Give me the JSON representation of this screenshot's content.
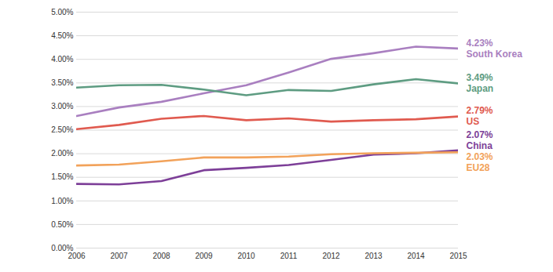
{
  "chart_data": {
    "type": "line",
    "x": [
      2006,
      2007,
      2008,
      2009,
      2010,
      2011,
      2012,
      2013,
      2014,
      2015
    ],
    "xlim": [
      2006,
      2015
    ],
    "xticks": [
      2006,
      2007,
      2008,
      2009,
      2010,
      2011,
      2012,
      2013,
      2014,
      2015
    ],
    "ylim": [
      0,
      5
    ],
    "yticks": [
      {
        "value": 0,
        "label": "0.00%"
      },
      {
        "value": 0.5,
        "label": "0.50%"
      },
      {
        "value": 1,
        "label": "1.00%"
      },
      {
        "value": 1.5,
        "label": "1.50%"
      },
      {
        "value": 2,
        "label": "2.00%"
      },
      {
        "value": 2.5,
        "label": "2.50%"
      },
      {
        "value": 3,
        "label": "3.00%"
      },
      {
        "value": 3.5,
        "label": "3.50%"
      },
      {
        "value": 4,
        "label": "4.00%"
      },
      {
        "value": 4.5,
        "label": "4.50%"
      },
      {
        "value": 5,
        "label": "5.00%"
      }
    ],
    "grid": true,
    "series": [
      {
        "name": "South Korea",
        "color": "#a97fc0",
        "values": [
          2.8,
          2.98,
          3.1,
          3.28,
          3.45,
          3.72,
          4.01,
          4.13,
          4.27,
          4.23
        ],
        "value_labels": [
          null,
          null,
          null,
          null,
          null,
          null,
          null,
          null,
          null,
          "4.23%"
        ]
      },
      {
        "name": "Japan",
        "color": "#5e9c82",
        "values": [
          3.4,
          3.45,
          3.46,
          3.36,
          3.24,
          3.35,
          3.33,
          3.47,
          3.58,
          3.49
        ],
        "value_labels": [
          null,
          null,
          null,
          null,
          null,
          null,
          null,
          null,
          null,
          "3.49%"
        ]
      },
      {
        "name": "US",
        "color": "#e05a4f",
        "values": [
          2.52,
          2.61,
          2.74,
          2.8,
          2.71,
          2.75,
          2.68,
          2.71,
          2.73,
          2.79
        ],
        "value_labels": [
          null,
          null,
          null,
          null,
          null,
          null,
          null,
          null,
          null,
          "2.79%"
        ]
      },
      {
        "name": "China",
        "color": "#7d3f98",
        "values": [
          1.36,
          1.35,
          1.42,
          1.65,
          1.7,
          1.76,
          1.87,
          1.98,
          2.01,
          2.07
        ],
        "value_labels": [
          null,
          null,
          null,
          null,
          null,
          null,
          null,
          null,
          null,
          "2.07%"
        ]
      },
      {
        "name": "EU28",
        "color": "#f2a25a",
        "values": [
          1.75,
          1.77,
          1.84,
          1.92,
          1.92,
          1.94,
          1.99,
          2.01,
          2.02,
          2.03
        ],
        "value_labels": [
          null,
          null,
          null,
          null,
          null,
          null,
          null,
          null,
          null,
          "2.03%"
        ]
      }
    ]
  }
}
